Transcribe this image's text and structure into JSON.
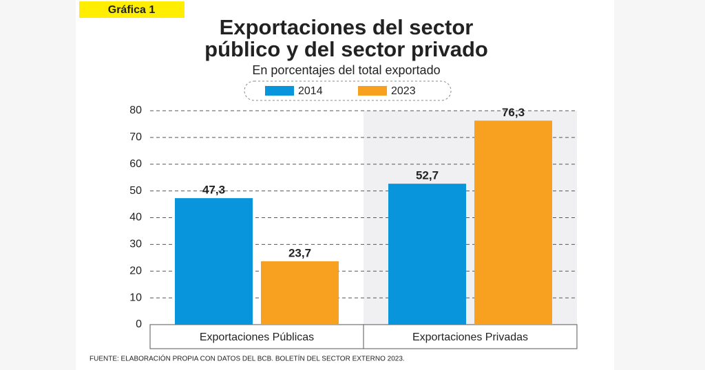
{
  "chart_data": {
    "type": "bar",
    "badge": "Gráfica 1",
    "title": [
      "Exportaciones del sector",
      "público y del sector privado"
    ],
    "subtitle": "En porcentajes del total exportado",
    "categories": [
      "Exportaciones Públicas",
      "Exportaciones Privadas"
    ],
    "series": [
      {
        "name": "2014",
        "color": "#0995dc",
        "values": [
          47.3,
          52.7
        ],
        "value_labels": [
          "47,3",
          "52,7"
        ]
      },
      {
        "name": "2023",
        "color": "#f8a121",
        "values": [
          23.7,
          76.3
        ],
        "value_labels": [
          "23,7",
          "76,3"
        ]
      }
    ],
    "ylim": [
      0,
      80
    ],
    "yticks": [
      0,
      10,
      20,
      30,
      40,
      50,
      60,
      70,
      80
    ],
    "grid": true,
    "source": "FUENTE: ELABORACIÓN PROPIA CON DATOS DEL BCB. BOLETÍN DEL SECTOR EXTERNO 2023."
  }
}
